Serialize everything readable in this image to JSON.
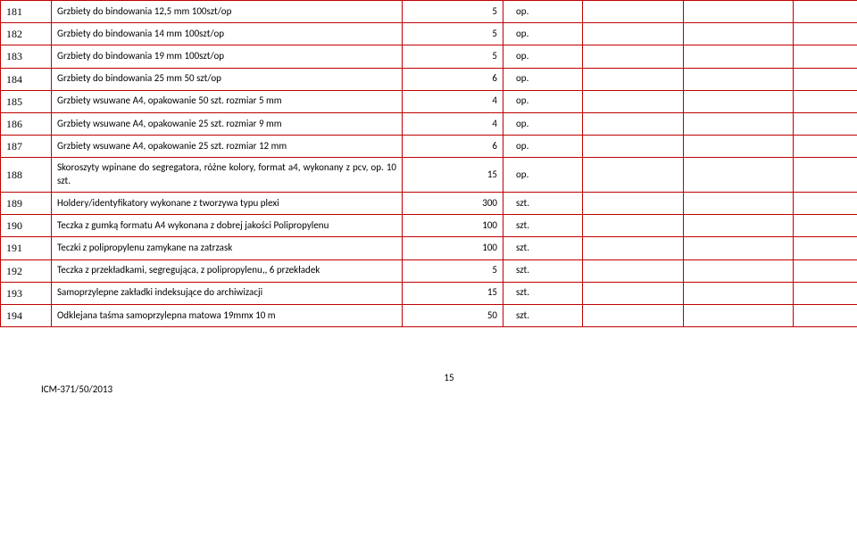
{
  "table": {
    "border_color": "#c00000",
    "rows": [
      {
        "num": "181",
        "desc": "Grzbiety do bindowania 12,5 mm 100szt/op",
        "qty": "5",
        "unit": "op."
      },
      {
        "num": "182",
        "desc": "Grzbiety do bindowania 14 mm 100szt/op",
        "qty": "5",
        "unit": "op."
      },
      {
        "num": "183",
        "desc": "Grzbiety do bindowania 19 mm 100szt/op",
        "qty": "5",
        "unit": "op."
      },
      {
        "num": "184",
        "desc": "Grzbiety do bindowania 25 mm  50 szt/op",
        "qty": "6",
        "unit": "op."
      },
      {
        "num": "185",
        "desc": "Grzbiety wsuwane A4, opakowanie 50 szt. rozmiar 5 mm",
        "qty": "4",
        "unit": "op."
      },
      {
        "num": "186",
        "desc": "Grzbiety wsuwane A4, opakowanie 25 szt. rozmiar 9 mm",
        "qty": "4",
        "unit": "op."
      },
      {
        "num": "187",
        "desc": "Grzbiety wsuwane A4, opakowanie 25 szt. rozmiar 12 mm",
        "qty": "6",
        "unit": "op."
      },
      {
        "num": "188",
        "desc": "Skoroszyty wpinane do segregatora, różne kolory, format a4, wykonany z pcv, op. 10 szt.",
        "qty": "15",
        "unit": "op."
      },
      {
        "num": "189",
        "desc": "Holdery/identyfikatory wykonane z tworzywa typu plexi",
        "qty": "300",
        "unit": "szt."
      },
      {
        "num": "190",
        "desc": "Teczka z gumką formatu A4 wykonana z dobrej jakości Polipropylenu",
        "qty": "100",
        "unit": "szt."
      },
      {
        "num": "191",
        "desc": "Teczki z polipropylenu zamykane na zatrzask",
        "qty": "100",
        "unit": "szt."
      },
      {
        "num": "192",
        "desc": "Teczka z przekładkami, segregująca, z polipropylenu,, 6 przekładek",
        "qty": "5",
        "unit": "szt."
      },
      {
        "num": "193",
        "desc": "Samoprzylepne zakładki indeksujące do archiwizacji",
        "qty": "15",
        "unit": "szt."
      },
      {
        "num": "194",
        "desc": "Odklejana taśma samoprzylepna matowa 19mmx 10 m",
        "qty": "50",
        "unit": "szt."
      }
    ]
  },
  "footer": {
    "ref": "ICM-371/50/2013",
    "page": "15"
  }
}
